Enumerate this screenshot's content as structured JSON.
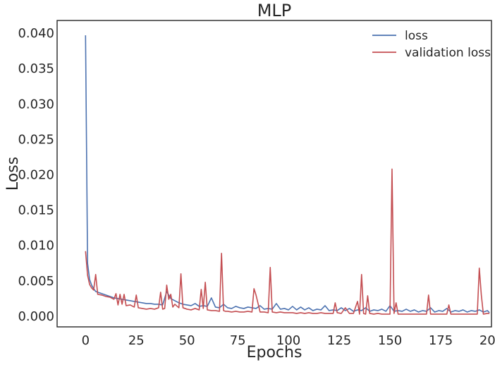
{
  "chart_data": {
    "type": "line",
    "title": "MLP",
    "xlabel": "Epochs",
    "ylabel": "Loss",
    "xlim": [
      -14,
      200
    ],
    "ylim": [
      -0.0015,
      0.0418
    ],
    "xticks": [
      0,
      25,
      50,
      75,
      100,
      125,
      150,
      175,
      200
    ],
    "xtick_labels": [
      "0",
      "25",
      "50",
      "75",
      "100",
      "125",
      "150",
      "175",
      "200"
    ],
    "yticks": [
      0.0,
      0.005,
      0.01,
      0.015,
      0.02,
      0.025,
      0.03,
      0.035,
      0.04
    ],
    "ytick_labels": [
      "0.000",
      "0.005",
      "0.010",
      "0.015",
      "0.020",
      "0.025",
      "0.030",
      "0.035",
      "0.040"
    ],
    "grid": false,
    "legend_position": "top-right",
    "series": [
      {
        "name": "loss",
        "color": "#4c72b0",
        "x": [
          0,
          1,
          2,
          3,
          4,
          5,
          6,
          7,
          8,
          10,
          12,
          14,
          16,
          18,
          20,
          22,
          24,
          26,
          28,
          30,
          32,
          34,
          36,
          38,
          40,
          42,
          44,
          46,
          48,
          50,
          52,
          54,
          56,
          58,
          60,
          62,
          64,
          66,
          68,
          70,
          72,
          74,
          76,
          78,
          80,
          82,
          84,
          86,
          88,
          90,
          92,
          94,
          96,
          98,
          100,
          102,
          104,
          106,
          108,
          110,
          112,
          114,
          116,
          118,
          120,
          122,
          124,
          126,
          128,
          130,
          132,
          134,
          136,
          138,
          140,
          142,
          144,
          146,
          148,
          150,
          152,
          154,
          156,
          158,
          160,
          162,
          164,
          166,
          168,
          170,
          172,
          174,
          176,
          178,
          180,
          182,
          184,
          186,
          188,
          190,
          192,
          194,
          196,
          198,
          199
        ],
        "y": [
          0.0397,
          0.0075,
          0.0052,
          0.0044,
          0.0039,
          0.0035,
          0.0034,
          0.0033,
          0.0032,
          0.003,
          0.0028,
          0.0026,
          0.0025,
          0.0024,
          0.0023,
          0.0022,
          0.0021,
          0.002,
          0.0019,
          0.0018,
          0.0018,
          0.0017,
          0.0017,
          0.0016,
          0.0035,
          0.0025,
          0.0022,
          0.0019,
          0.0017,
          0.0016,
          0.0015,
          0.0018,
          0.0014,
          0.0015,
          0.0014,
          0.0026,
          0.0013,
          0.0012,
          0.0017,
          0.0012,
          0.0011,
          0.0014,
          0.0012,
          0.0011,
          0.0013,
          0.0012,
          0.0011,
          0.0015,
          0.001,
          0.0011,
          0.001,
          0.0018,
          0.001,
          0.0011,
          0.0009,
          0.0014,
          0.0009,
          0.0013,
          0.0009,
          0.0012,
          0.0008,
          0.001,
          0.0009,
          0.0015,
          0.0008,
          0.0009,
          0.0008,
          0.0012,
          0.0008,
          0.0011,
          0.0007,
          0.0009,
          0.0008,
          0.0012,
          0.0007,
          0.0009,
          0.0008,
          0.001,
          0.0007,
          0.0015,
          0.0007,
          0.0008,
          0.0007,
          0.001,
          0.0007,
          0.0009,
          0.0006,
          0.0008,
          0.0007,
          0.0012,
          0.0006,
          0.0008,
          0.0007,
          0.0011,
          0.0006,
          0.0008,
          0.0007,
          0.0009,
          0.0006,
          0.0008,
          0.0007,
          0.0009,
          0.0006,
          0.0008,
          0.0005
        ]
      },
      {
        "name": "validation loss",
        "color": "#c44e52",
        "x": [
          0,
          1,
          2,
          3,
          4,
          5,
          6,
          8,
          10,
          12,
          14,
          15,
          16,
          17,
          18,
          19,
          20,
          22,
          24,
          25,
          26,
          28,
          30,
          32,
          34,
          36,
          37,
          38,
          39,
          40,
          41,
          42,
          43,
          44,
          46,
          47,
          48,
          50,
          52,
          54,
          56,
          57,
          58,
          59,
          60,
          62,
          64,
          66,
          67,
          68,
          69,
          70,
          72,
          74,
          76,
          78,
          80,
          82,
          83,
          84,
          86,
          88,
          90,
          91,
          92,
          94,
          96,
          98,
          100,
          102,
          104,
          106,
          108,
          110,
          112,
          114,
          116,
          118,
          120,
          122,
          123,
          124,
          126,
          128,
          130,
          132,
          134,
          135,
          136,
          137,
          138,
          139,
          140,
          142,
          144,
          146,
          148,
          150,
          151,
          152,
          153,
          154,
          156,
          158,
          160,
          162,
          164,
          166,
          168,
          169,
          170,
          171,
          172,
          174,
          176,
          178,
          179,
          180,
          182,
          184,
          186,
          188,
          190,
          192,
          193,
          194,
          195,
          196,
          198,
          199
        ],
        "y": [
          0.0092,
          0.0058,
          0.0045,
          0.004,
          0.0037,
          0.0059,
          0.0031,
          0.003,
          0.0028,
          0.0027,
          0.0024,
          0.0032,
          0.0016,
          0.0031,
          0.0017,
          0.0031,
          0.0015,
          0.0016,
          0.0013,
          0.003,
          0.0012,
          0.0011,
          0.001,
          0.0011,
          0.001,
          0.0012,
          0.0034,
          0.001,
          0.0011,
          0.0044,
          0.0024,
          0.0031,
          0.0013,
          0.0017,
          0.0012,
          0.006,
          0.0012,
          0.001,
          0.0009,
          0.0011,
          0.0009,
          0.0038,
          0.0011,
          0.0048,
          0.0009,
          0.0008,
          0.0008,
          0.0007,
          0.0089,
          0.0008,
          0.0007,
          0.0007,
          0.0006,
          0.0007,
          0.0006,
          0.0006,
          0.0007,
          0.0006,
          0.0039,
          0.003,
          0.0006,
          0.0006,
          0.0005,
          0.0069,
          0.0006,
          0.0005,
          0.0006,
          0.0005,
          0.0005,
          0.0005,
          0.0004,
          0.0005,
          0.0004,
          0.0005,
          0.0004,
          0.0004,
          0.0005,
          0.0004,
          0.0004,
          0.0004,
          0.0019,
          0.0005,
          0.0004,
          0.0012,
          0.0004,
          0.0004,
          0.0021,
          0.0003,
          0.0059,
          0.0004,
          0.0003,
          0.0029,
          0.0004,
          0.0003,
          0.0004,
          0.0003,
          0.0003,
          0.0003,
          0.0208,
          0.0004,
          0.0019,
          0.0003,
          0.0003,
          0.0003,
          0.0003,
          0.0003,
          0.0003,
          0.0003,
          0.0003,
          0.003,
          0.0003,
          0.0003,
          0.0003,
          0.0003,
          0.0003,
          0.0003,
          0.0016,
          0.0003,
          0.0003,
          0.0003,
          0.0003,
          0.0003,
          0.0003,
          0.0003,
          0.0003,
          0.0068,
          0.003,
          0.0003,
          0.0004,
          0.0004
        ]
      }
    ]
  }
}
